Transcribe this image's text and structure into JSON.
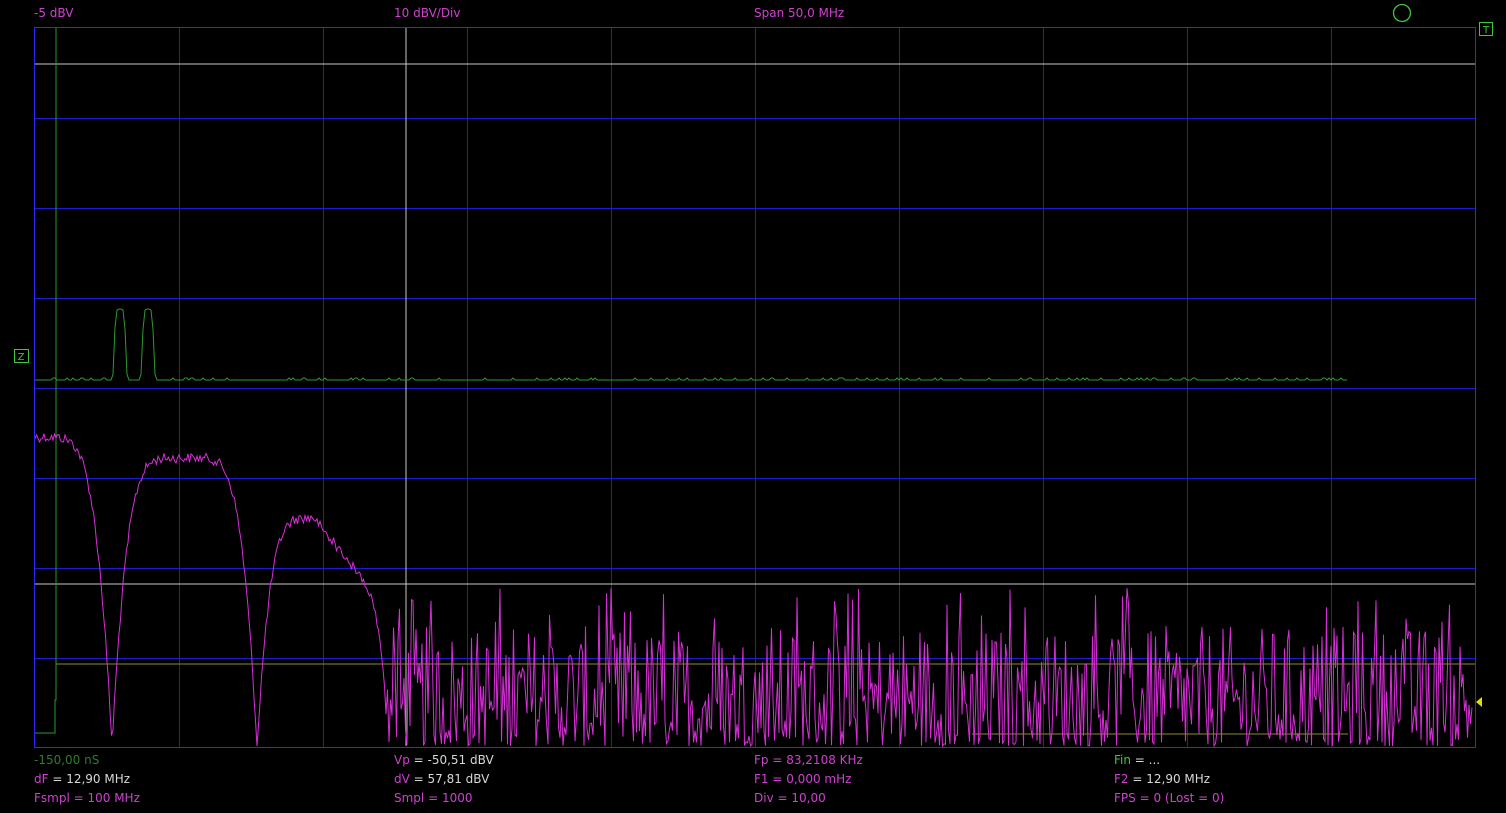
{
  "header": {
    "ref_level": "-5 dBV",
    "scale": "10 dBV/Div",
    "span": "Span 50,0 MHz"
  },
  "markers": {
    "trigger_symbol": "T",
    "channel_symbol": "Z"
  },
  "readouts": {
    "time_offset": "-150,00 nS",
    "vp_key": "Vp",
    "vp_value": " = -50,51 dBV",
    "fp_key": "Fp",
    "fp_value": " = 83,2108 KHz",
    "fin_key": "Fin",
    "fin_value": " = ...",
    "df_key": "dF",
    "df_value": " = 12,90 MHz",
    "dv_key": "dV",
    "dv_value": " = 57,81 dBV",
    "f1_key": "F1",
    "f1_value": " = 0,000 mHz",
    "f2_key": "F2",
    "f2_value": " = 12,90 MHz",
    "fsmpl_key": "Fsmpl",
    "fsmpl_value": " = 100 MHz",
    "smpl_key": "Smpl",
    "smpl_value": " = 1000",
    "div_key": "Div",
    "div_value": " = 10,00",
    "fps_key": "FPS",
    "fps_value": " = 0 (Lost = 0)"
  },
  "colors": {
    "background": "#000000",
    "grid": "#1c1cd0",
    "border": "#2a2aff",
    "magenta": "#d62fd6",
    "green": "#2d9a2d",
    "label_magenta": "#d040d0",
    "label_white": "#d8d8d8",
    "label_green": "#3cc83c",
    "cursor": "#c8c8c8",
    "yellow": "#e0e000",
    "olive": "#8a8a30"
  }
}
